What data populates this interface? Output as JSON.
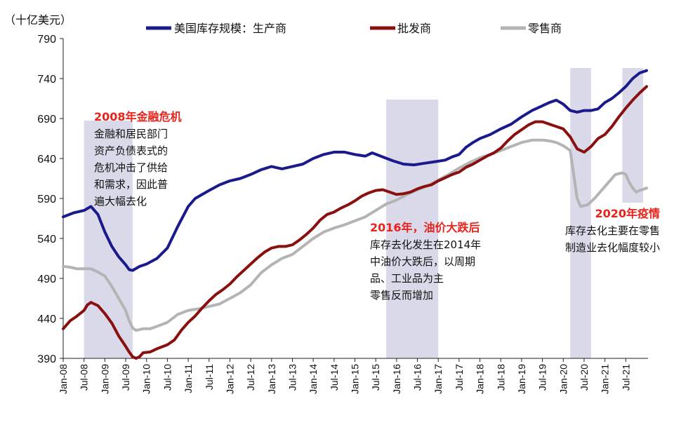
{
  "chart_data": {
    "type": "line",
    "unit_label": "（十亿美元）",
    "ylim": [
      390,
      790
    ],
    "y_ticks": [
      "790",
      "740",
      "690",
      "640",
      "590",
      "540",
      "490",
      "440",
      "390"
    ],
    "x_labels": [
      "Jan-08",
      "Jul-08",
      "Jan-09",
      "Jul-09",
      "Jan-10",
      "Jul-10",
      "Jan-11",
      "Jul-11",
      "Jan-12",
      "Jul-12",
      "Jan-13",
      "Jul-13",
      "Jan-14",
      "Jul-14",
      "Jan-15",
      "Jul-15",
      "Jan-16",
      "Jul-16",
      "Jan-17",
      "Jul-17",
      "Jan-18",
      "Jul-18",
      "Jan-19",
      "Jul-19",
      "Jan-20",
      "Jul-20",
      "Jan-21",
      "Jul-21"
    ],
    "grid": false,
    "legend_position": "top",
    "series": [
      {
        "name": "美国库存规模：生产商",
        "color": "#1a1a8c",
        "points": [
          [
            0,
            567
          ],
          [
            3,
            572
          ],
          [
            6,
            575
          ],
          [
            8,
            580
          ],
          [
            10,
            570
          ],
          [
            12,
            548
          ],
          [
            14,
            530
          ],
          [
            16,
            517
          ],
          [
            18,
            507
          ],
          [
            19,
            501
          ],
          [
            20,
            500
          ],
          [
            22,
            505
          ],
          [
            24,
            508
          ],
          [
            27,
            515
          ],
          [
            30,
            528
          ],
          [
            33,
            555
          ],
          [
            36,
            580
          ],
          [
            38,
            590
          ],
          [
            42,
            600
          ],
          [
            45,
            607
          ],
          [
            48,
            612
          ],
          [
            51,
            615
          ],
          [
            54,
            620
          ],
          [
            57,
            626
          ],
          [
            60,
            630
          ],
          [
            63,
            627
          ],
          [
            66,
            630
          ],
          [
            69,
            633
          ],
          [
            72,
            640
          ],
          [
            75,
            645
          ],
          [
            78,
            648
          ],
          [
            81,
            648
          ],
          [
            84,
            645
          ],
          [
            87,
            643
          ],
          [
            89,
            647
          ],
          [
            92,
            642
          ],
          [
            95,
            637
          ],
          [
            98,
            633
          ],
          [
            101,
            632
          ],
          [
            104,
            634
          ],
          [
            107,
            636
          ],
          [
            110,
            638
          ],
          [
            112,
            642
          ],
          [
            114,
            645
          ],
          [
            116,
            654
          ],
          [
            118,
            660
          ],
          [
            120,
            665
          ],
          [
            123,
            670
          ],
          [
            126,
            677
          ],
          [
            129,
            683
          ],
          [
            132,
            692
          ],
          [
            135,
            700
          ],
          [
            138,
            706
          ],
          [
            140,
            710
          ],
          [
            142,
            713
          ],
          [
            144,
            708
          ],
          [
            146,
            700
          ],
          [
            148,
            698
          ],
          [
            150,
            700
          ],
          [
            152,
            700
          ],
          [
            154,
            702
          ],
          [
            156,
            710
          ],
          [
            158,
            715
          ],
          [
            160,
            722
          ],
          [
            162,
            730
          ],
          [
            164,
            740
          ],
          [
            166,
            747
          ],
          [
            168,
            750
          ]
        ]
      },
      {
        "name": "批发商",
        "color": "#8a0f0f",
        "points": [
          [
            0,
            427
          ],
          [
            2,
            437
          ],
          [
            4,
            443
          ],
          [
            6,
            450
          ],
          [
            7,
            457
          ],
          [
            8,
            460
          ],
          [
            9,
            458
          ],
          [
            10,
            456
          ],
          [
            12,
            446
          ],
          [
            14,
            434
          ],
          [
            16,
            418
          ],
          [
            18,
            405
          ],
          [
            19,
            398
          ],
          [
            20,
            392
          ],
          [
            21,
            390
          ],
          [
            22,
            392
          ],
          [
            23,
            397
          ],
          [
            25,
            398
          ],
          [
            27,
            402
          ],
          [
            30,
            407
          ],
          [
            32,
            413
          ],
          [
            34,
            425
          ],
          [
            36,
            435
          ],
          [
            38,
            443
          ],
          [
            40,
            453
          ],
          [
            42,
            462
          ],
          [
            44,
            470
          ],
          [
            46,
            476
          ],
          [
            48,
            483
          ],
          [
            50,
            492
          ],
          [
            52,
            500
          ],
          [
            54,
            508
          ],
          [
            56,
            516
          ],
          [
            58,
            523
          ],
          [
            60,
            528
          ],
          [
            62,
            530
          ],
          [
            64,
            530
          ],
          [
            66,
            532
          ],
          [
            68,
            538
          ],
          [
            70,
            545
          ],
          [
            72,
            553
          ],
          [
            74,
            563
          ],
          [
            76,
            570
          ],
          [
            78,
            573
          ],
          [
            80,
            578
          ],
          [
            82,
            582
          ],
          [
            84,
            587
          ],
          [
            86,
            593
          ],
          [
            88,
            597
          ],
          [
            90,
            600
          ],
          [
            92,
            601
          ],
          [
            94,
            598
          ],
          [
            96,
            595
          ],
          [
            98,
            596
          ],
          [
            100,
            598
          ],
          [
            102,
            602
          ],
          [
            104,
            605
          ],
          [
            106,
            607
          ],
          [
            108,
            612
          ],
          [
            110,
            616
          ],
          [
            112,
            620
          ],
          [
            114,
            623
          ],
          [
            116,
            629
          ],
          [
            118,
            633
          ],
          [
            120,
            638
          ],
          [
            122,
            643
          ],
          [
            124,
            647
          ],
          [
            126,
            653
          ],
          [
            128,
            662
          ],
          [
            130,
            670
          ],
          [
            132,
            676
          ],
          [
            134,
            682
          ],
          [
            136,
            686
          ],
          [
            138,
            686
          ],
          [
            140,
            683
          ],
          [
            142,
            680
          ],
          [
            144,
            677
          ],
          [
            146,
            667
          ],
          [
            148,
            652
          ],
          [
            150,
            648
          ],
          [
            152,
            655
          ],
          [
            154,
            665
          ],
          [
            156,
            670
          ],
          [
            158,
            680
          ],
          [
            160,
            692
          ],
          [
            162,
            703
          ],
          [
            164,
            713
          ],
          [
            166,
            722
          ],
          [
            168,
            730
          ]
        ]
      },
      {
        "name": "零售商",
        "color": "#b4b4b4",
        "points": [
          [
            0,
            505
          ],
          [
            2,
            504
          ],
          [
            4,
            502
          ],
          [
            6,
            502
          ],
          [
            8,
            502
          ],
          [
            10,
            498
          ],
          [
            12,
            493
          ],
          [
            14,
            480
          ],
          [
            16,
            465
          ],
          [
            18,
            450
          ],
          [
            19,
            437
          ],
          [
            20,
            428
          ],
          [
            21,
            425
          ],
          [
            23,
            427
          ],
          [
            25,
            427
          ],
          [
            27,
            430
          ],
          [
            30,
            435
          ],
          [
            33,
            445
          ],
          [
            36,
            450
          ],
          [
            39,
            452
          ],
          [
            42,
            455
          ],
          [
            45,
            458
          ],
          [
            48,
            465
          ],
          [
            51,
            472
          ],
          [
            54,
            482
          ],
          [
            57,
            497
          ],
          [
            60,
            507
          ],
          [
            63,
            515
          ],
          [
            66,
            520
          ],
          [
            69,
            530
          ],
          [
            72,
            540
          ],
          [
            75,
            548
          ],
          [
            78,
            553
          ],
          [
            81,
            557
          ],
          [
            84,
            562
          ],
          [
            87,
            567
          ],
          [
            90,
            575
          ],
          [
            93,
            583
          ],
          [
            96,
            588
          ],
          [
            99,
            595
          ],
          [
            102,
            601
          ],
          [
            105,
            606
          ],
          [
            108,
            613
          ],
          [
            111,
            620
          ],
          [
            114,
            628
          ],
          [
            117,
            635
          ],
          [
            120,
            641
          ],
          [
            123,
            645
          ],
          [
            126,
            650
          ],
          [
            129,
            655
          ],
          [
            132,
            660
          ],
          [
            135,
            663
          ],
          [
            138,
            663
          ],
          [
            140,
            662
          ],
          [
            142,
            660
          ],
          [
            144,
            656
          ],
          [
            146,
            650
          ],
          [
            147,
            620
          ],
          [
            148,
            590
          ],
          [
            149,
            580
          ],
          [
            151,
            582
          ],
          [
            153,
            590
          ],
          [
            155,
            600
          ],
          [
            157,
            610
          ],
          [
            159,
            620
          ],
          [
            161,
            622
          ],
          [
            162,
            620
          ],
          [
            163,
            610
          ],
          [
            164,
            603
          ],
          [
            165,
            598
          ],
          [
            166,
            600
          ],
          [
            168,
            603
          ]
        ]
      }
    ],
    "shaded_regions": [
      [
        6,
        20
      ],
      [
        93,
        108
      ],
      [
        146,
        152
      ],
      [
        161,
        167
      ]
    ],
    "annotations": [
      {
        "title": "2008年金融危机",
        "lines": [
          "金融和居民部门",
          "资产负债表式的",
          "危机冲击了供给",
          "和需求，因此普",
          "遍大幅去化"
        ]
      },
      {
        "title": "2016年，油价大跌后",
        "lines": [
          "库存去化发生在2014年",
          "中油价大跌后，以周期",
          "品、工业品为主",
          "零售反而增加"
        ]
      },
      {
        "title": "2020年疫情",
        "lines": [
          "库存去化主要在零售",
          "制造业去化幅度较小"
        ]
      }
    ]
  }
}
